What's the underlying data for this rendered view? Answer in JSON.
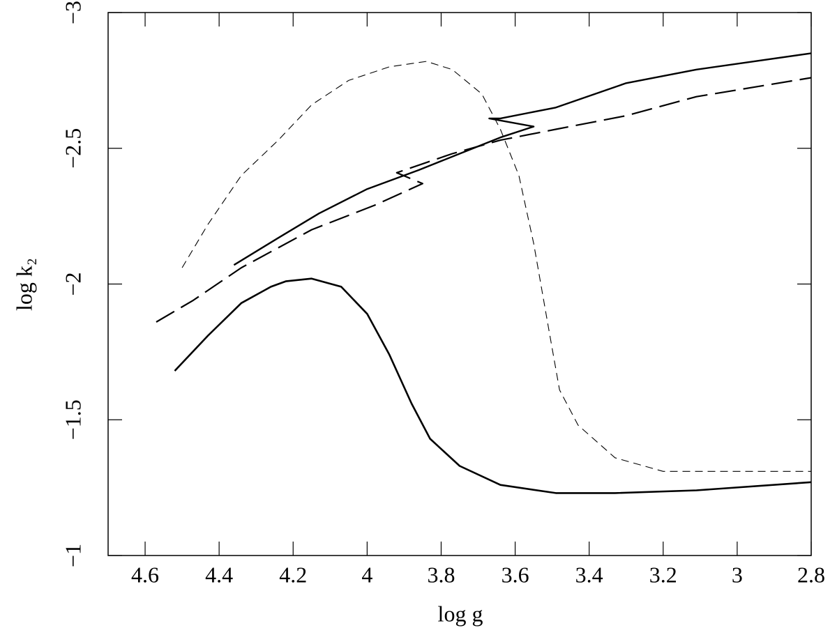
{
  "chart_data": {
    "type": "line",
    "x_label": "log  g",
    "y_label": "log k₂",
    "xlim": [
      4.7,
      2.8
    ],
    "ylim": [
      -1,
      -3
    ],
    "xticks": [
      4.6,
      4.4,
      4.2,
      4,
      3.8,
      3.6,
      3.4,
      3.2,
      3,
      2.8
    ],
    "yticks": [
      {
        "value": -1,
        "label": "−1"
      },
      {
        "value": -1.5,
        "label": "−1.5"
      },
      {
        "value": -2,
        "label": "−2"
      },
      {
        "value": -2.5,
        "label": "−2.5"
      },
      {
        "value": -3,
        "label": "−3"
      }
    ],
    "series": [
      {
        "color": "#000000",
        "width": 2.6,
        "dash": [],
        "x": [
          4.52,
          4.43,
          4.34,
          4.26,
          4.22,
          4.15,
          4.07,
          4.0,
          3.94,
          3.88,
          3.83,
          3.75,
          3.64,
          3.49,
          3.33,
          3.11,
          2.8
        ],
        "values": [
          -1.68,
          -1.81,
          -1.93,
          -1.99,
          -2.01,
          -2.02,
          -1.99,
          -1.89,
          -1.74,
          -1.56,
          -1.43,
          -1.33,
          -1.26,
          -1.23,
          -1.23,
          -1.24,
          -1.27
        ]
      },
      {
        "color": "#000000",
        "width": 1.1,
        "dash": [
          11,
          7
        ],
        "x": [
          4.5,
          4.43,
          4.34,
          4.24,
          4.15,
          4.05,
          3.94,
          3.84,
          3.77,
          3.69,
          3.64,
          3.59,
          3.55,
          3.51,
          3.48,
          3.43,
          3.33,
          3.2,
          3.01,
          2.8
        ],
        "values": [
          -2.06,
          -2.22,
          -2.4,
          -2.53,
          -2.66,
          -2.75,
          -2.8,
          -2.82,
          -2.79,
          -2.7,
          -2.57,
          -2.4,
          -2.15,
          -1.84,
          -1.61,
          -1.48,
          -1.36,
          -1.31,
          -1.31,
          -1.31
        ]
      },
      {
        "color": "#000000",
        "width": 2.4,
        "dash": [],
        "x": [
          4.36,
          4.24,
          4.13,
          4.0,
          3.86,
          3.75,
          3.64,
          3.55,
          3.67,
          3.64,
          3.49,
          3.3,
          3.11,
          2.8
        ],
        "values": [
          -2.07,
          -2.17,
          -2.26,
          -2.35,
          -2.42,
          -2.48,
          -2.54,
          -2.58,
          -2.61,
          -2.61,
          -2.65,
          -2.74,
          -2.79,
          -2.85
        ]
      },
      {
        "color": "#000000",
        "width": 2.2,
        "dash": [
          30,
          11
        ],
        "x": [
          4.57,
          4.47,
          4.34,
          4.15,
          3.98,
          3.85,
          3.92,
          3.77,
          3.64,
          3.49,
          3.3,
          3.11,
          2.8
        ],
        "values": [
          -1.86,
          -1.94,
          -2.06,
          -2.2,
          -2.29,
          -2.37,
          -2.41,
          -2.48,
          -2.53,
          -2.57,
          -2.62,
          -2.69,
          -2.76
        ]
      }
    ]
  }
}
